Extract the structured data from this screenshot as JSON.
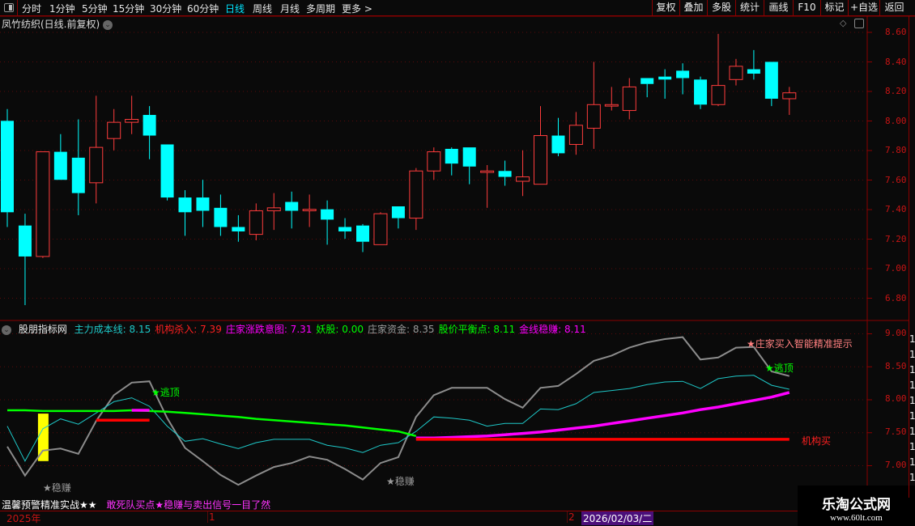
{
  "toolbar": {
    "periods": [
      "分时",
      "1分钟",
      "5分钟",
      "15分钟",
      "30分钟",
      "60分钟",
      "日线",
      "周线",
      "月线",
      "多周期",
      "更多 >"
    ],
    "active_period": "日线",
    "right_buttons": [
      "复权",
      "叠加",
      "多股",
      "统计",
      "画线",
      "F10",
      "标记",
      "+自选",
      "返回"
    ]
  },
  "main_chart": {
    "title": "凤竹纺织(日线.前复权)",
    "y_axis_labels": [
      "8.60",
      "8.40",
      "8.20",
      "8.00",
      "7.80",
      "7.60",
      "7.40",
      "7.20",
      "7.00",
      "6.80"
    ],
    "colors": {
      "up": "#ff3c3c",
      "down": "#00ffff",
      "grid": "#5a0a0a"
    }
  },
  "chart_data": [
    {
      "type": "candlestick",
      "ylim": [
        6.75,
        8.62
      ],
      "ohlc": [
        [
          8.0,
          8.08,
          7.28,
          7.38
        ],
        [
          7.29,
          7.37,
          6.75,
          7.08
        ],
        [
          7.08,
          7.79,
          7.07,
          7.79
        ],
        [
          7.79,
          7.91,
          7.6,
          7.6
        ],
        [
          7.75,
          8.01,
          7.36,
          7.51
        ],
        [
          7.58,
          8.17,
          7.44,
          7.82
        ],
        [
          7.88,
          8.08,
          7.8,
          7.99
        ],
        [
          7.99,
          8.17,
          7.91,
          8.01
        ],
        [
          8.04,
          8.1,
          7.74,
          7.9
        ],
        [
          7.84,
          7.84,
          7.46,
          7.48
        ],
        [
          7.48,
          7.53,
          7.22,
          7.38
        ],
        [
          7.48,
          7.6,
          7.28,
          7.39
        ],
        [
          7.41,
          7.5,
          7.22,
          7.28
        ],
        [
          7.28,
          7.36,
          7.18,
          7.25
        ],
        [
          7.23,
          7.44,
          7.19,
          7.39
        ],
        [
          7.39,
          7.51,
          7.26,
          7.41
        ],
        [
          7.45,
          7.52,
          7.27,
          7.39
        ],
        [
          7.39,
          7.5,
          7.28,
          7.4
        ],
        [
          7.4,
          7.46,
          7.16,
          7.33
        ],
        [
          7.28,
          7.34,
          7.2,
          7.25
        ],
        [
          7.29,
          7.3,
          7.11,
          7.18
        ],
        [
          7.16,
          7.38,
          7.16,
          7.37
        ],
        [
          7.42,
          7.42,
          7.27,
          7.34
        ],
        [
          7.34,
          7.68,
          7.26,
          7.66
        ],
        [
          7.66,
          7.82,
          7.6,
          7.79
        ],
        [
          7.81,
          7.82,
          7.63,
          7.71
        ],
        [
          7.82,
          7.82,
          7.57,
          7.69
        ],
        [
          7.65,
          7.7,
          7.41,
          7.66
        ],
        [
          7.66,
          7.73,
          7.56,
          7.62
        ],
        [
          7.59,
          7.8,
          7.49,
          7.62
        ],
        [
          7.57,
          8.1,
          7.57,
          7.9
        ],
        [
          7.9,
          8.02,
          7.76,
          7.78
        ],
        [
          7.84,
          8.06,
          7.77,
          7.97
        ],
        [
          7.95,
          8.4,
          7.81,
          8.11
        ],
        [
          8.1,
          8.23,
          8.07,
          8.11
        ],
        [
          8.07,
          8.29,
          8.01,
          8.23
        ],
        [
          8.29,
          8.29,
          8.16,
          8.25
        ],
        [
          8.3,
          8.35,
          8.15,
          8.28
        ],
        [
          8.34,
          8.39,
          8.18,
          8.29
        ],
        [
          8.28,
          8.3,
          8.08,
          8.11
        ],
        [
          8.11,
          8.59,
          8.1,
          8.24
        ],
        [
          8.28,
          8.42,
          8.24,
          8.37
        ],
        [
          8.35,
          8.48,
          8.28,
          8.32
        ],
        [
          8.4,
          8.4,
          8.1,
          8.15
        ],
        [
          8.15,
          8.23,
          8.04,
          8.19
        ]
      ]
    },
    {
      "type": "line",
      "ylim": [
        6.6,
        9.2
      ],
      "y_axis_labels": [
        "9.00",
        "8.50",
        "8.00",
        "7.50",
        "7.00"
      ],
      "series": [
        {
          "name": "庄家资金",
          "color": "#8c8c8c",
          "values": [
            7.29,
            6.85,
            7.23,
            7.26,
            7.18,
            7.68,
            8.07,
            8.26,
            8.28,
            7.72,
            7.27,
            7.07,
            6.86,
            6.71,
            6.85,
            6.98,
            7.04,
            7.14,
            7.09,
            6.95,
            6.79,
            7.04,
            7.13,
            7.74,
            8.07,
            8.18,
            8.18,
            8.18,
            8.01,
            7.88,
            8.18,
            8.21,
            8.39,
            8.59,
            8.67,
            8.79,
            8.87,
            8.92,
            8.95,
            8.61,
            8.64,
            8.79,
            8.8,
            8.43,
            8.36
          ]
        },
        {
          "name": "主力成本线",
          "color": "#1ec8c8",
          "values": [
            7.6,
            7.07,
            7.56,
            7.71,
            7.63,
            7.8,
            7.97,
            8.03,
            7.9,
            7.6,
            7.37,
            7.41,
            7.33,
            7.26,
            7.35,
            7.4,
            7.4,
            7.4,
            7.31,
            7.27,
            7.2,
            7.31,
            7.35,
            7.52,
            7.74,
            7.72,
            7.69,
            7.6,
            7.64,
            7.64,
            7.86,
            7.85,
            7.94,
            8.11,
            8.14,
            8.17,
            8.23,
            8.27,
            8.28,
            8.17,
            8.32,
            8.36,
            8.37,
            8.22,
            8.16
          ]
        },
        {
          "name": "股价平衡点",
          "color": "#00ff00",
          "values": [
            7.84,
            7.84,
            7.83,
            7.83,
            7.83,
            7.83,
            7.83,
            7.84,
            7.83,
            7.82,
            7.8,
            7.78,
            7.76,
            7.74,
            7.71,
            7.69,
            7.67,
            7.65,
            7.63,
            7.61,
            7.58,
            7.55,
            7.52,
            7.45,
            null,
            null,
            null,
            null,
            null,
            null,
            null,
            null,
            null,
            null,
            null,
            null,
            null,
            null,
            null,
            null,
            null,
            null,
            null,
            null,
            null
          ]
        },
        {
          "name": "金线稳赚",
          "color": "#ff00ff",
          "values": [
            null,
            null,
            null,
            null,
            null,
            null,
            null,
            7.84,
            7.84,
            null,
            null,
            null,
            null,
            null,
            null,
            null,
            null,
            null,
            null,
            null,
            null,
            null,
            null,
            7.42,
            7.42,
            7.43,
            7.44,
            7.45,
            7.47,
            7.49,
            7.51,
            7.54,
            7.57,
            7.6,
            7.64,
            7.68,
            7.72,
            7.76,
            7.8,
            7.85,
            7.89,
            7.94,
            7.99,
            8.04,
            8.11
          ]
        },
        {
          "name": "机构杀入",
          "color": "#ff0000",
          "values": [
            null,
            null,
            null,
            null,
            null,
            7.69,
            7.69,
            7.69,
            7.69,
            null,
            null,
            null,
            null,
            null,
            null,
            null,
            null,
            null,
            null,
            null,
            null,
            null,
            null,
            7.4,
            7.4,
            7.4,
            7.4,
            7.4,
            7.4,
            7.4,
            7.4,
            7.4,
            7.4,
            7.4,
            7.4,
            7.4,
            7.4,
            7.4,
            7.4,
            7.4,
            7.4,
            7.4,
            7.4,
            7.4,
            7.4
          ]
        }
      ],
      "yellow_bar": {
        "index": 2,
        "from": 7.07,
        "to": 7.79
      }
    }
  ],
  "indicator": {
    "name": "股朋指标网",
    "values": [
      {
        "label": "主力成本线: 8.15",
        "color": "#1ec8c8"
      },
      {
        "label": "机构杀入: 7.39",
        "color": "#ff2020"
      },
      {
        "label": "庄家涨跌意图: 7.31",
        "color": "#ff00ff"
      },
      {
        "label": "妖股: 0.00",
        "color": "#00ff00"
      },
      {
        "label": "庄家资金: 8.35",
        "color": "#9a9a9a"
      },
      {
        "label": "股价平衡点: 8.11",
        "color": "#00ff00"
      },
      {
        "label": "金线稳赚: 8.11",
        "color": "#ff00ff"
      }
    ],
    "signals": {
      "wenzhuan": "★稳赚",
      "taoding": "★逃顶",
      "zhuangjia": "★庄家买入智能精准提示",
      "jigou": "机构买"
    }
  },
  "bottom": {
    "note1": "温馨预警精准实战★★",
    "note2": "敢死队买点★稳赚与卖出信号一目了然"
  },
  "timeaxis": {
    "year": "2025年",
    "m1": "1",
    "m2": "2",
    "cursor_date": "2026/02/03/二"
  },
  "watermark": {
    "name": "乐淘公式网",
    "url": "www.60lt.com"
  },
  "strip": [
    "1",
    "1",
    "1",
    "1",
    "1",
    "1",
    "1",
    "1",
    "1",
    "1"
  ]
}
